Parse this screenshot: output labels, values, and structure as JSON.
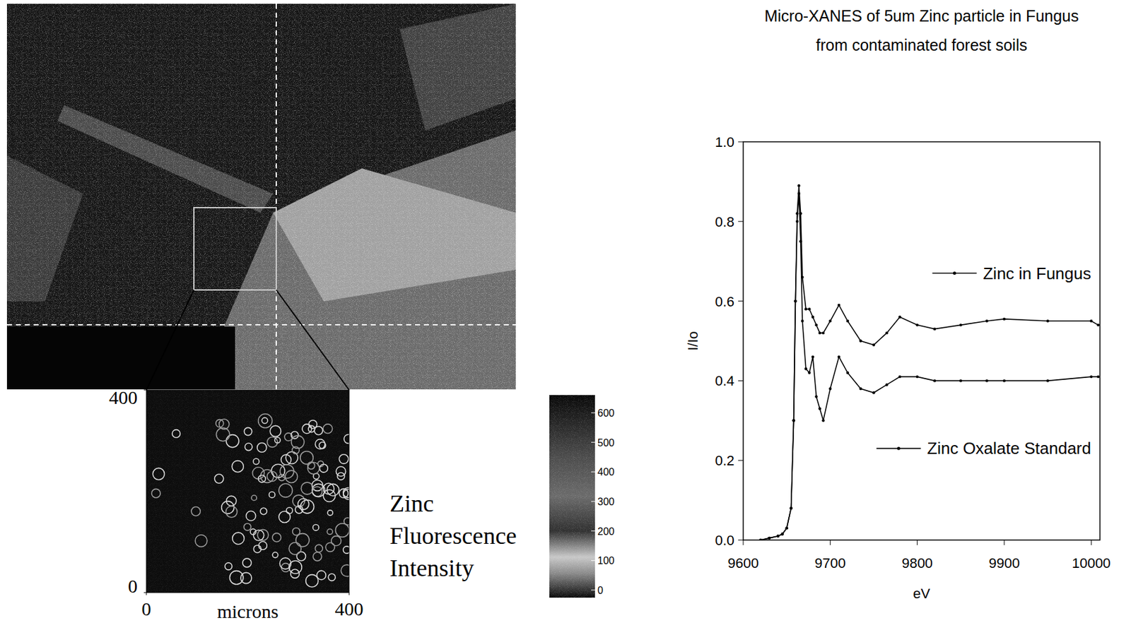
{
  "chart_data": [
    {
      "type": "image",
      "title": "Zinc Fluorescence Intensity",
      "x_label": "microns",
      "xlim": [
        0,
        400
      ],
      "ylim": [
        0,
        400
      ],
      "xticks": [
        0,
        400
      ],
      "yticks": [
        0,
        400
      ],
      "colorbar": {
        "range": [
          0,
          600
        ],
        "ticks": [
          0,
          100,
          200,
          300,
          400,
          500,
          600
        ]
      }
    },
    {
      "type": "line",
      "title": "Micro-XANES of 5um Zinc particle in Fungus",
      "subtitle": "from contaminated forest soils",
      "x_label": "eV",
      "y_label": "I/Io",
      "xlim": [
        9600,
        10010
      ],
      "ylim": [
        0,
        1
      ],
      "xticks": [
        9600,
        9700,
        9800,
        9900,
        10000
      ],
      "yticks": [
        {
          "value": 0,
          "label": "0.0"
        },
        0.2,
        0.4,
        0.6,
        0.8,
        {
          "value": 1,
          "label": "1.0"
        }
      ],
      "legend": "right",
      "marker": "dot",
      "x": [
        9620,
        9630,
        9640,
        9645,
        9650,
        9655,
        9658,
        9660,
        9662,
        9664,
        9666,
        9668,
        9672,
        9676,
        9680,
        9684,
        9688,
        9692,
        9700,
        9710,
        9720,
        9735,
        9750,
        9765,
        9780,
        9800,
        9820,
        9850,
        9880,
        9900,
        9950,
        10000,
        10008
      ],
      "series": [
        {
          "name": "Zinc in Fungus",
          "color": "#000000",
          "values": [
            0.0,
            0.005,
            0.01,
            0.015,
            0.03,
            0.08,
            0.3,
            0.6,
            0.82,
            0.89,
            0.82,
            0.66,
            0.58,
            0.58,
            0.56,
            0.54,
            0.52,
            0.52,
            0.55,
            0.59,
            0.55,
            0.5,
            0.49,
            0.52,
            0.56,
            0.54,
            0.53,
            0.54,
            0.55,
            0.555,
            0.55,
            0.55,
            0.54
          ]
        },
        {
          "name": "Zinc Oxalate Standard",
          "color": "#000000",
          "values": [
            0.0,
            0.005,
            0.01,
            0.015,
            0.03,
            0.08,
            0.3,
            0.6,
            0.8,
            0.87,
            0.75,
            0.55,
            0.43,
            0.42,
            0.46,
            0.36,
            0.33,
            0.3,
            0.38,
            0.46,
            0.42,
            0.38,
            0.37,
            0.39,
            0.41,
            0.41,
            0.4,
            0.4,
            0.4,
            0.4,
            0.4,
            0.41,
            0.41
          ]
        }
      ]
    }
  ]
}
